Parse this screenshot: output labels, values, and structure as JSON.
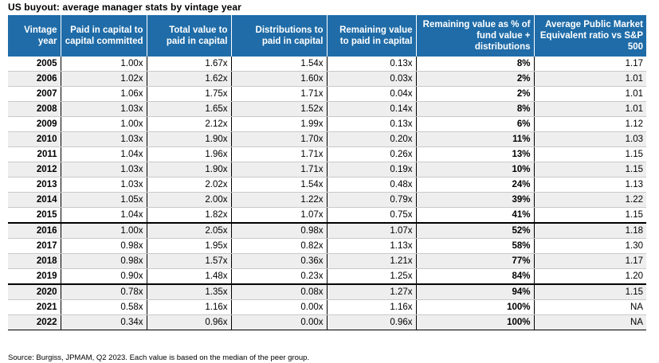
{
  "title": "US buyout: average manager stats by vintage year",
  "table": {
    "headers": [
      "Vintage year",
      "Paid in capital to capital committed",
      "Total value to paid in capital",
      "Distributions to paid in capital",
      "Remaining value to paid in capital",
      "Remaining value as % of fund value + distributions",
      "Average Public Market Equivalent ratio vs S&P 500"
    ],
    "rows": [
      [
        "2005",
        "1.00x",
        "1.67x",
        "1.54x",
        "0.13x",
        "8%",
        "1.17"
      ],
      [
        "2006",
        "1.02x",
        "1.62x",
        "1.60x",
        "0.03x",
        "2%",
        "1.01"
      ],
      [
        "2007",
        "1.06x",
        "1.75x",
        "1.71x",
        "0.04x",
        "2%",
        "1.01"
      ],
      [
        "2008",
        "1.03x",
        "1.65x",
        "1.52x",
        "0.14x",
        "8%",
        "1.01"
      ],
      [
        "2009",
        "1.00x",
        "2.12x",
        "1.99x",
        "0.13x",
        "6%",
        "1.12"
      ],
      [
        "2010",
        "1.03x",
        "1.90x",
        "1.70x",
        "0.20x",
        "11%",
        "1.03"
      ],
      [
        "2011",
        "1.04x",
        "1.96x",
        "1.71x",
        "0.26x",
        "13%",
        "1.15"
      ],
      [
        "2012",
        "1.03x",
        "1.90x",
        "1.71x",
        "0.19x",
        "10%",
        "1.15"
      ],
      [
        "2013",
        "1.03x",
        "2.02x",
        "1.54x",
        "0.48x",
        "24%",
        "1.13"
      ],
      [
        "2014",
        "1.05x",
        "2.00x",
        "1.22x",
        "0.79x",
        "39%",
        "1.22"
      ],
      [
        "2015",
        "1.04x",
        "1.82x",
        "1.07x",
        "0.75x",
        "41%",
        "1.15"
      ],
      [
        "2016",
        "1.00x",
        "2.05x",
        "0.98x",
        "1.07x",
        "52%",
        "1.18"
      ],
      [
        "2017",
        "0.98x",
        "1.95x",
        "0.82x",
        "1.13x",
        "58%",
        "1.30"
      ],
      [
        "2018",
        "0.98x",
        "1.57x",
        "0.36x",
        "1.21x",
        "77%",
        "1.17"
      ],
      [
        "2019",
        "0.90x",
        "1.48x",
        "0.23x",
        "1.25x",
        "84%",
        "1.20"
      ],
      [
        "2020",
        "0.78x",
        "1.35x",
        "0.08x",
        "1.27x",
        "94%",
        "1.15"
      ],
      [
        "2021",
        "0.58x",
        "1.16x",
        "0.00x",
        "1.16x",
        "100%",
        "NA"
      ],
      [
        "2022",
        "0.34x",
        "0.96x",
        "0.00x",
        "0.96x",
        "100%",
        "NA"
      ]
    ]
  },
  "source": "Source: Burgiss, JPMAM, Q2 2023. Each value is based on the median of the peer group.",
  "colors": {
    "header_bg": "#1f6ca8",
    "row_shade": "#eeeeee"
  }
}
